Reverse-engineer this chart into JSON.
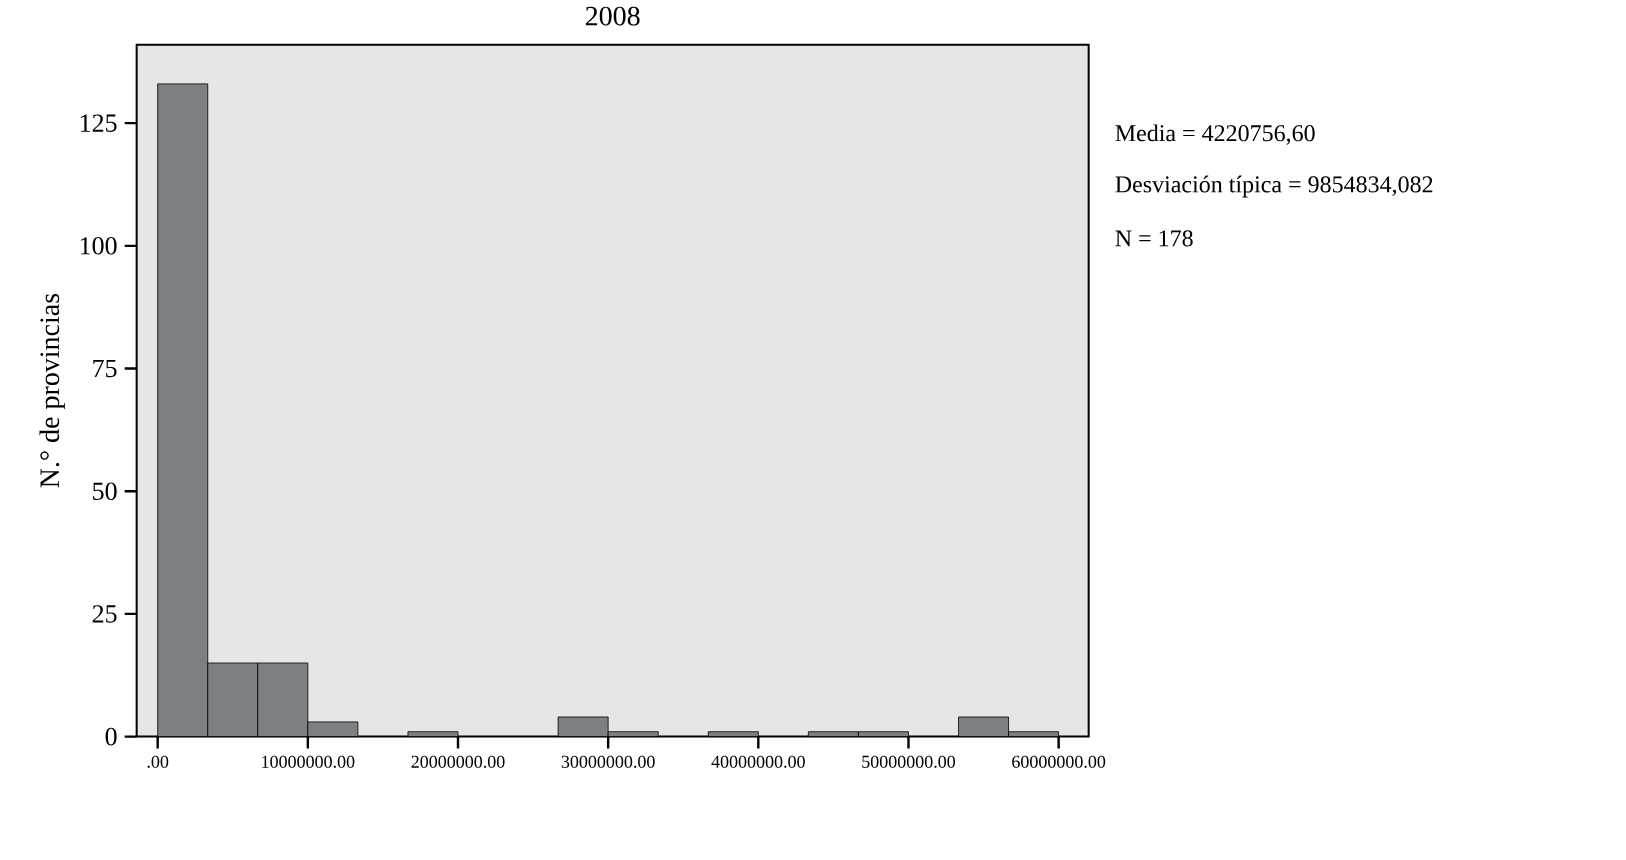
{
  "chart_data": {
    "type": "histogram",
    "title": "2008",
    "ylabel": "N.° de provincias",
    "bins": [
      0,
      3333333.33,
      6666666.67,
      10000000,
      13333333.33,
      16666666.67,
      20000000,
      23333333.33,
      26666666.67,
      30000000,
      33333333.33,
      36666666.67,
      40000000,
      43333333.33,
      46666666.67,
      50000000,
      53333333.33,
      56666666.67,
      60000000
    ],
    "values": [
      133,
      15,
      15,
      3,
      0,
      1,
      0,
      0,
      4,
      1,
      0,
      1,
      0,
      1,
      1,
      0,
      4,
      1
    ],
    "color": "#7d8083",
    "xlim": [
      -1400000,
      62000000
    ],
    "ylim": [
      0,
      141
    ],
    "xticks": [
      {
        "value": 0,
        "label": ".00"
      },
      {
        "value": 10000000,
        "label": "10000000.00"
      },
      {
        "value": 20000000,
        "label": "20000000.00"
      },
      {
        "value": 30000000,
        "label": "30000000.00"
      },
      {
        "value": 40000000,
        "label": "40000000.00"
      },
      {
        "value": 50000000,
        "label": "50000000.00"
      },
      {
        "value": 60000000,
        "label": "60000000.00"
      }
    ],
    "yticks": [
      0,
      25,
      50,
      75,
      100,
      125
    ],
    "grid": false,
    "annotations": [
      "Media = 4220756,60",
      "Desviación típica = 9854834,082",
      "N = 178"
    ]
  }
}
